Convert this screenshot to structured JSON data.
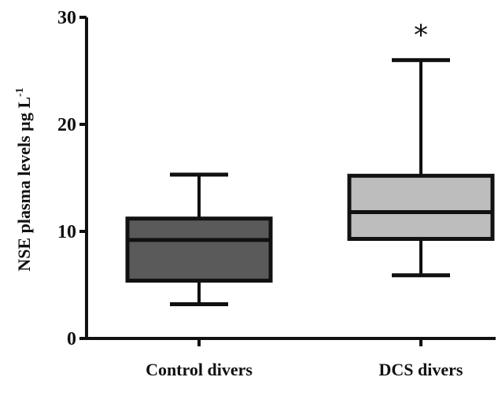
{
  "chart_data": {
    "type": "box",
    "categories": [
      "Control divers",
      "DCS divers"
    ],
    "ylabel_main": "NSE plasma levels  µg L",
    "ylabel_sup": "-1",
    "ylim": [
      0,
      30
    ],
    "yticks": [
      0,
      10,
      20,
      30
    ],
    "boxes": [
      {
        "name": "Control divers",
        "min": 3.2,
        "q1": 5.4,
        "median": 9.2,
        "q3": 11.2,
        "max": 15.3,
        "color": "#5a5a5a"
      },
      {
        "name": "DCS divers",
        "min": 5.9,
        "q1": 9.3,
        "median": 11.8,
        "q3": 15.2,
        "max": 26.0,
        "color": "#bdbdbd"
      }
    ],
    "significance_marker": "*",
    "significance_category": "DCS divers",
    "grid": false
  }
}
